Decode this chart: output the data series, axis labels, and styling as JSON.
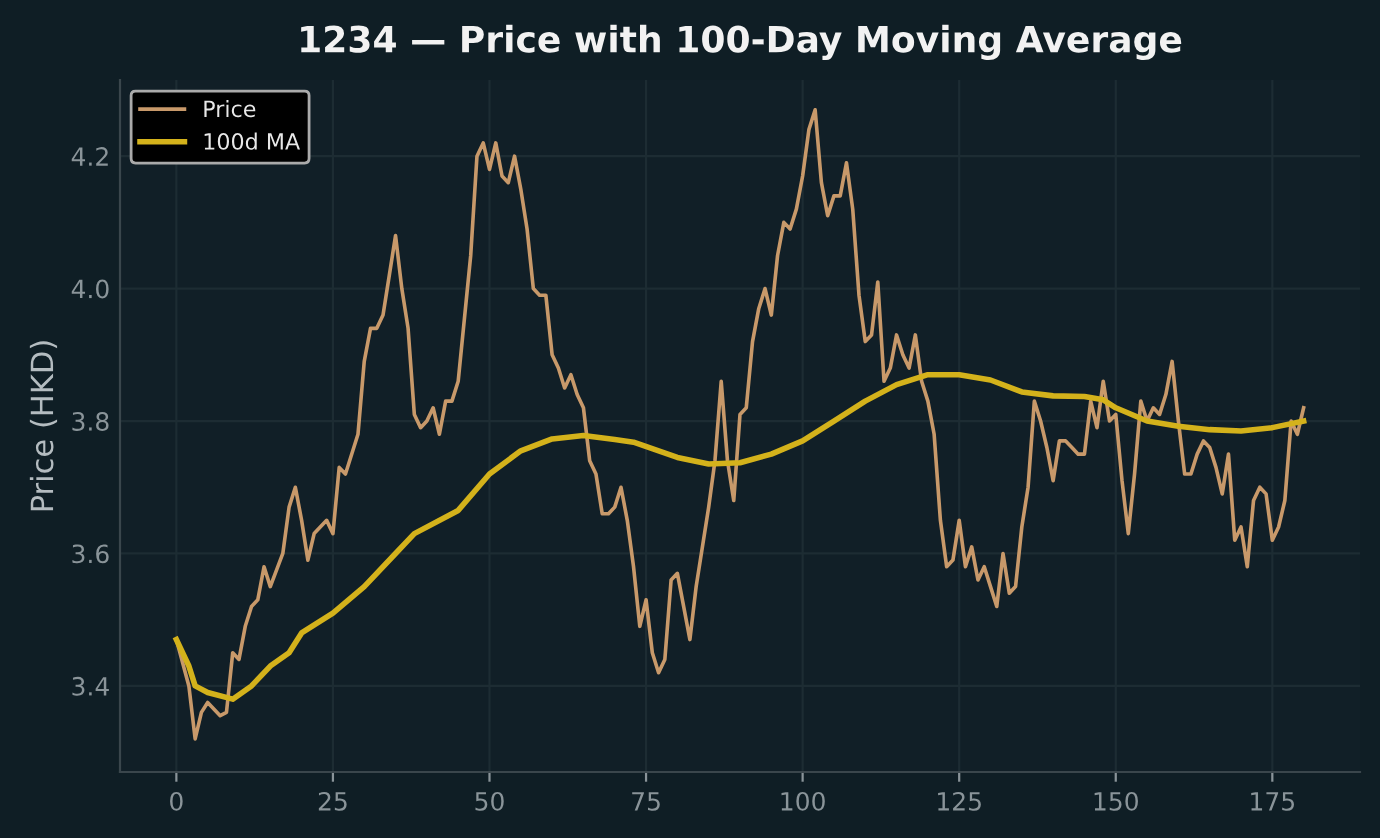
{
  "chart_data": {
    "type": "line",
    "title": "1234 — Price with 100-Day Moving Average",
    "ylabel": "Price (HKD)",
    "xlim": [
      -9,
      189
    ],
    "xticks": [
      0,
      25,
      50,
      75,
      100,
      125,
      150,
      175
    ],
    "ylim": [
      3.27,
      4.315
    ],
    "yticks": [
      3.4,
      3.6,
      3.8,
      {
        "value": 4.0,
        "label": "4.0"
      },
      4.2
    ],
    "grid": true,
    "legend": "top left",
    "marker": "none",
    "line_style": "solid",
    "series": [
      {
        "name": "Price",
        "color": "#c8996a",
        "x": [
          0,
          2,
          3,
          4,
          5,
          7,
          8,
          9,
          10,
          11,
          12,
          13,
          14,
          15,
          17,
          18,
          19,
          20,
          21,
          22,
          24,
          25,
          26,
          27,
          29,
          30,
          31,
          32,
          33,
          34,
          35,
          36,
          37,
          38,
          39,
          40,
          41,
          42,
          43,
          44,
          45,
          47,
          48,
          49,
          50,
          51,
          52,
          53,
          54,
          55,
          56,
          57,
          58,
          59,
          60,
          61,
          62,
          63,
          64,
          65,
          66,
          67,
          68,
          69,
          70,
          71,
          72,
          73,
          74,
          75,
          76,
          77,
          78,
          79,
          80,
          81,
          82,
          83,
          85,
          86,
          87,
          88,
          89,
          90,
          91,
          92,
          93,
          94,
          95,
          96,
          97,
          98,
          99,
          100,
          101,
          102,
          103,
          104,
          105,
          106,
          107,
          108,
          109,
          110,
          111,
          112,
          113,
          114,
          115,
          116,
          117,
          118,
          119,
          120,
          121,
          122,
          123,
          124,
          125,
          126,
          127,
          128,
          129,
          130,
          131,
          132,
          133,
          134,
          135,
          136,
          137,
          138,
          139,
          140,
          141,
          142,
          143,
          144,
          145,
          146,
          147,
          148,
          149,
          150,
          151,
          152,
          153,
          154,
          155,
          156,
          157,
          158,
          159,
          160,
          161,
          162,
          163,
          164,
          165,
          166,
          167,
          168,
          169,
          170,
          171,
          172,
          173,
          174,
          175,
          176,
          177,
          178,
          179,
          180
        ],
        "values": [
          3.47,
          3.4,
          3.32,
          3.36,
          3.375,
          3.355,
          3.36,
          3.45,
          3.44,
          3.49,
          3.52,
          3.53,
          3.58,
          3.55,
          3.6,
          3.67,
          3.7,
          3.65,
          3.59,
          3.63,
          3.65,
          3.63,
          3.73,
          3.72,
          3.78,
          3.89,
          3.94,
          3.94,
          3.96,
          4.02,
          4.08,
          4.0,
          3.94,
          3.81,
          3.79,
          3.8,
          3.82,
          3.78,
          3.83,
          3.83,
          3.86,
          4.05,
          4.2,
          4.22,
          4.18,
          4.22,
          4.17,
          4.16,
          4.2,
          4.15,
          4.09,
          4.0,
          3.99,
          3.99,
          3.9,
          3.88,
          3.85,
          3.87,
          3.84,
          3.82,
          3.74,
          3.72,
          3.66,
          3.66,
          3.67,
          3.7,
          3.65,
          3.58,
          3.49,
          3.53,
          3.45,
          3.42,
          3.44,
          3.56,
          3.57,
          3.52,
          3.47,
          3.55,
          3.67,
          3.74,
          3.86,
          3.74,
          3.68,
          3.81,
          3.82,
          3.92,
          3.97,
          4.0,
          3.96,
          4.05,
          4.1,
          4.09,
          4.12,
          4.17,
          4.24,
          4.27,
          4.16,
          4.11,
          4.14,
          4.14,
          4.19,
          4.12,
          3.99,
          3.92,
          3.93,
          4.01,
          3.86,
          3.88,
          3.93,
          3.9,
          3.88,
          3.93,
          3.86,
          3.83,
          3.78,
          3.65,
          3.58,
          3.59,
          3.65,
          3.58,
          3.61,
          3.56,
          3.58,
          3.55,
          3.52,
          3.6,
          3.54,
          3.55,
          3.64,
          3.7,
          3.83,
          3.8,
          3.76,
          3.71,
          3.77,
          3.77,
          3.76,
          3.75,
          3.75,
          3.83,
          3.79,
          3.86,
          3.8,
          3.81,
          3.71,
          3.63,
          3.72,
          3.83,
          3.8,
          3.82,
          3.81,
          3.84,
          3.89,
          3.8,
          3.72,
          3.72,
          3.75,
          3.77,
          3.76,
          3.73,
          3.69,
          3.75,
          3.62,
          3.64,
          3.58,
          3.68,
          3.7,
          3.69,
          3.62,
          3.64,
          3.68,
          3.8,
          3.78,
          3.82
        ]
      },
      {
        "name": "100d MA",
        "color": "#d4b21b",
        "x": [
          0,
          2,
          3,
          5,
          9,
          12,
          15,
          18,
          20,
          25,
          30,
          35,
          38,
          45,
          50,
          55,
          60,
          65,
          70,
          73,
          80,
          85,
          90,
          95,
          100,
          105,
          110,
          115,
          120,
          125,
          130,
          135,
          140,
          145,
          148,
          150,
          155,
          160,
          165,
          170,
          175,
          180
        ],
        "values": [
          3.47,
          3.43,
          3.4,
          3.39,
          3.38,
          3.4,
          3.43,
          3.45,
          3.48,
          3.51,
          3.55,
          3.6,
          3.63,
          3.665,
          3.72,
          3.755,
          3.773,
          3.778,
          3.772,
          3.768,
          3.745,
          3.735,
          3.737,
          3.75,
          3.77,
          3.8,
          3.83,
          3.855,
          3.87,
          3.87,
          3.862,
          3.844,
          3.838,
          3.837,
          3.832,
          3.82,
          3.8,
          3.792,
          3.787,
          3.785,
          3.79,
          3.8
        ]
      }
    ]
  }
}
